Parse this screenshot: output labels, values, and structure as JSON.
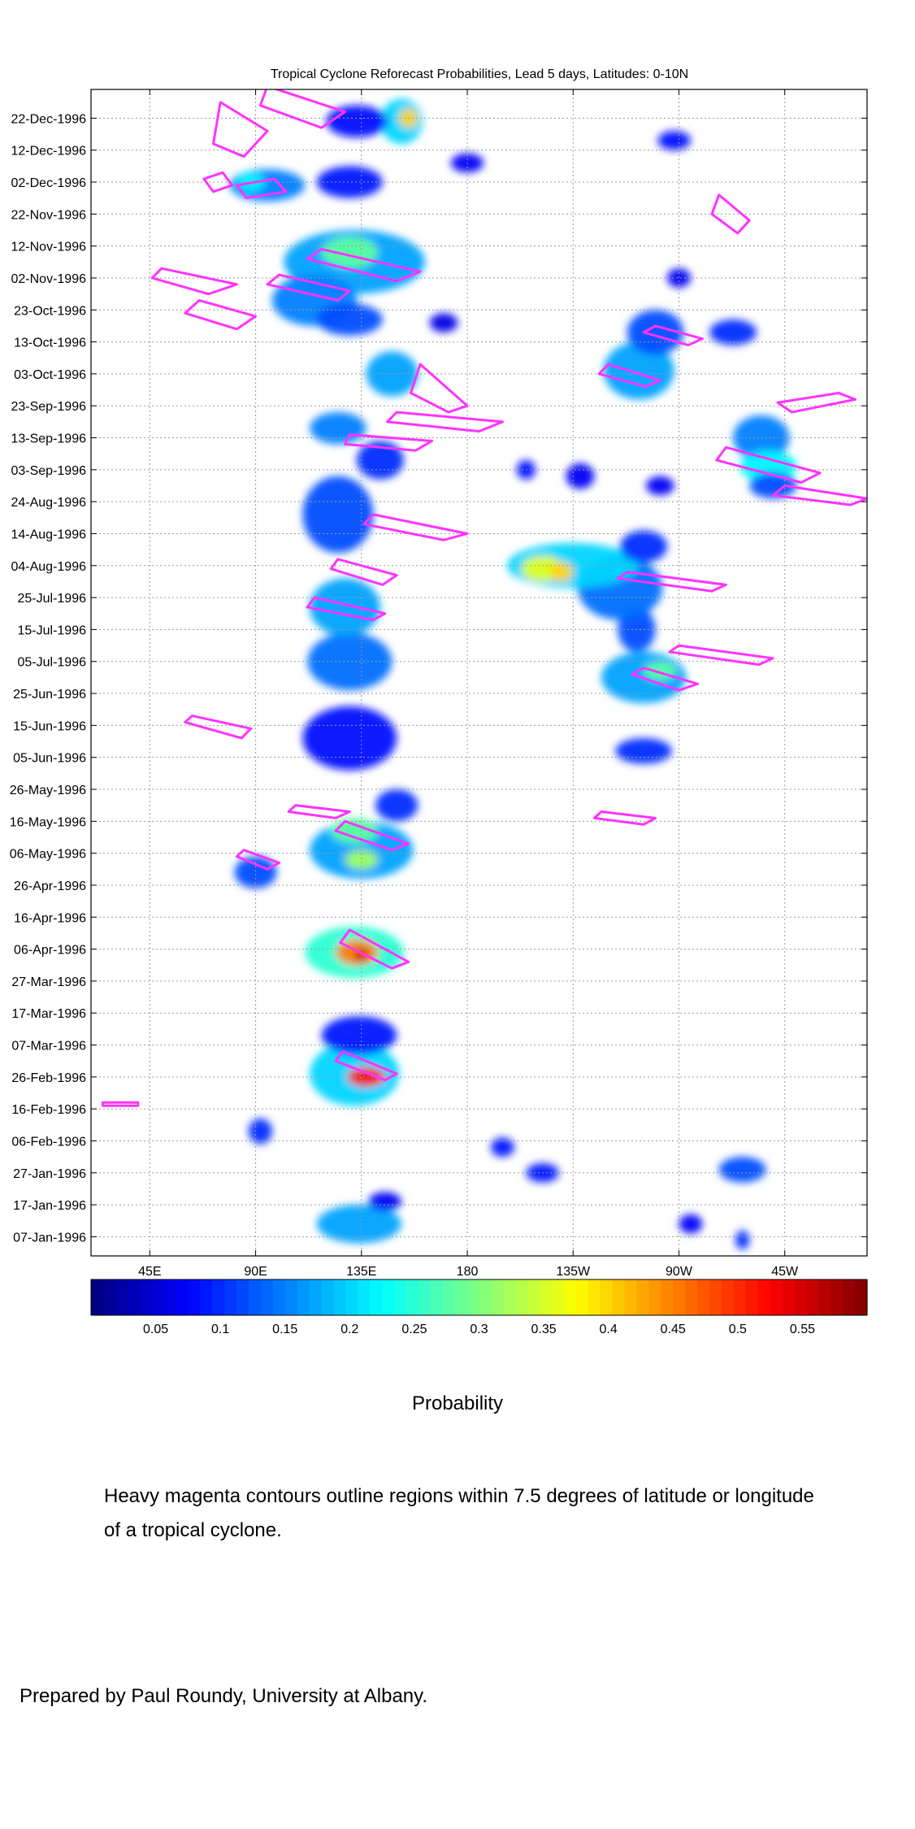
{
  "colors": {
    "contour": "#ff33ff",
    "grid": "#9a9a9a",
    "frame": "#000000"
  },
  "chart_data": {
    "type": "heatmap",
    "title": "Tropical Cyclone Reforecast Probabilities, Lead 5 days, Latitudes: 0-10N",
    "xlabel": "",
    "ylabel": "",
    "x_ticks": [
      "45E",
      "90E",
      "135E",
      "180",
      "135W",
      "90W",
      "45W"
    ],
    "x_tick_values": [
      45,
      90,
      135,
      180,
      225,
      270,
      315
    ],
    "xlim": [
      20,
      350
    ],
    "y_ticks": [
      "22-Dec-1996",
      "12-Dec-1996",
      "02-Dec-1996",
      "22-Nov-1996",
      "12-Nov-1996",
      "02-Nov-1996",
      "23-Oct-1996",
      "13-Oct-1996",
      "03-Oct-1996",
      "23-Sep-1996",
      "13-Sep-1996",
      "03-Sep-1996",
      "24-Aug-1996",
      "14-Aug-1996",
      "04-Aug-1996",
      "25-Jul-1996",
      "15-Jul-1996",
      "05-Jul-1996",
      "25-Jun-1996",
      "15-Jun-1996",
      "05-Jun-1996",
      "26-May-1996",
      "16-May-1996",
      "06-May-1996",
      "26-Apr-1996",
      "16-Apr-1996",
      "06-Apr-1996",
      "27-Mar-1996",
      "17-Mar-1996",
      "07-Mar-1996",
      "26-Feb-1996",
      "16-Feb-1996",
      "06-Feb-1996",
      "27-Jan-1996",
      "17-Jan-1996",
      "07-Jan-1996"
    ],
    "ylim": [
      "1996-01-01",
      "1996-12-31"
    ],
    "colorbar": {
      "label": "Probability",
      "range": [
        0,
        0.6
      ],
      "ticks": [
        "0.05",
        "0.1",
        "0.15",
        "0.2",
        "0.25",
        "0.3",
        "0.35",
        "0.4",
        "0.45",
        "0.5",
        "0.55"
      ],
      "tick_values": [
        0.05,
        0.1,
        0.15,
        0.2,
        0.25,
        0.3,
        0.35,
        0.4,
        0.45,
        0.5,
        0.55
      ]
    },
    "blobs": [
      {
        "lon": 134,
        "date": "1996-01-11",
        "dlon": 18,
        "ddays": 6,
        "p": 0.17
      },
      {
        "lon": 145,
        "date": "1996-01-18",
        "dlon": 7,
        "ddays": 3,
        "p": 0.07
      },
      {
        "lon": 92,
        "date": "1996-02-09",
        "dlon": 5,
        "ddays": 4,
        "p": 0.1
      },
      {
        "lon": 195,
        "date": "1996-02-04",
        "dlon": 5,
        "ddays": 3,
        "p": 0.09
      },
      {
        "lon": 212,
        "date": "1996-01-27",
        "dlon": 7,
        "ddays": 3,
        "p": 0.09
      },
      {
        "lon": 297,
        "date": "1996-01-28",
        "dlon": 10,
        "ddays": 4,
        "p": 0.12
      },
      {
        "lon": 275,
        "date": "1996-01-11",
        "dlon": 5,
        "ddays": 3,
        "p": 0.07
      },
      {
        "lon": 132,
        "date": "1996-02-27",
        "dlon": 19,
        "ddays": 10,
        "p": 0.2
      },
      {
        "lon": 137,
        "date": "1996-02-26",
        "dlon": 8,
        "ddays": 3,
        "p": 0.52
      },
      {
        "lon": 134,
        "date": "1996-03-10",
        "dlon": 16,
        "ddays": 6,
        "p": 0.09
      },
      {
        "lon": 132,
        "date": "1996-04-05",
        "dlon": 21,
        "ddays": 8,
        "p": 0.25
      },
      {
        "lon": 133,
        "date": "1996-04-05",
        "dlon": 9,
        "ddays": 4,
        "p": 0.45
      },
      {
        "lon": 135,
        "date": "1996-04-04",
        "dlon": 3,
        "ddays": 2,
        "p": 0.55
      },
      {
        "lon": 90,
        "date": "1996-04-30",
        "dlon": 9,
        "ddays": 5,
        "p": 0.12
      },
      {
        "lon": 135,
        "date": "1996-05-07",
        "dlon": 22,
        "ddays": 9,
        "p": 0.17
      },
      {
        "lon": 132,
        "date": "1996-05-13",
        "dlon": 10,
        "ddays": 4,
        "p": 0.28
      },
      {
        "lon": 135,
        "date": "1996-05-04",
        "dlon": 7,
        "ddays": 3,
        "p": 0.32
      },
      {
        "lon": 150,
        "date": "1996-05-21",
        "dlon": 9,
        "ddays": 5,
        "p": 0.1
      },
      {
        "lon": 255,
        "date": "1996-06-07",
        "dlon": 12,
        "ddays": 4,
        "p": 0.1
      },
      {
        "lon": 130,
        "date": "1996-06-11",
        "dlon": 20,
        "ddays": 10,
        "p": 0.08
      },
      {
        "lon": 130,
        "date": "1996-07-05",
        "dlon": 18,
        "ddays": 9,
        "p": 0.14
      },
      {
        "lon": 128,
        "date": "1996-07-22",
        "dlon": 15,
        "ddays": 9,
        "p": 0.17
      },
      {
        "lon": 255,
        "date": "1996-06-30",
        "dlon": 18,
        "ddays": 8,
        "p": 0.17
      },
      {
        "lon": 262,
        "date": "1996-07-02",
        "dlon": 7,
        "ddays": 3,
        "p": 0.28
      },
      {
        "lon": 252,
        "date": "1996-07-15",
        "dlon": 8,
        "ddays": 7,
        "p": 0.12
      },
      {
        "lon": 245,
        "date": "1996-07-28",
        "dlon": 18,
        "ddays": 10,
        "p": 0.14
      },
      {
        "lon": 225,
        "date": "1996-08-04",
        "dlon": 28,
        "ddays": 7,
        "p": 0.2
      },
      {
        "lon": 212,
        "date": "1996-08-03",
        "dlon": 9,
        "ddays": 4,
        "p": 0.36
      },
      {
        "lon": 220,
        "date": "1996-08-02",
        "dlon": 5,
        "ddays": 3,
        "p": 0.4
      },
      {
        "lon": 255,
        "date": "1996-08-10",
        "dlon": 10,
        "ddays": 5,
        "p": 0.1
      },
      {
        "lon": 125,
        "date": "1996-08-20",
        "dlon": 15,
        "ddays": 12,
        "p": 0.12
      },
      {
        "lon": 143,
        "date": "1996-09-06",
        "dlon": 10,
        "ddays": 6,
        "p": 0.1
      },
      {
        "lon": 125,
        "date": "1996-09-16",
        "dlon": 12,
        "ddays": 5,
        "p": 0.15
      },
      {
        "lon": 148,
        "date": "1996-10-03",
        "dlon": 11,
        "ddays": 7,
        "p": 0.17
      },
      {
        "lon": 253,
        "date": "1996-10-04",
        "dlon": 15,
        "ddays": 9,
        "p": 0.17
      },
      {
        "lon": 260,
        "date": "1996-10-16",
        "dlon": 12,
        "ddays": 7,
        "p": 0.12
      },
      {
        "lon": 293,
        "date": "1996-10-16",
        "dlon": 10,
        "ddays": 4,
        "p": 0.1
      },
      {
        "lon": 305,
        "date": "1996-09-13",
        "dlon": 12,
        "ddays": 7,
        "p": 0.15
      },
      {
        "lon": 308,
        "date": "1996-09-04",
        "dlon": 12,
        "ddays": 5,
        "p": 0.22
      },
      {
        "lon": 310,
        "date": "1996-08-29",
        "dlon": 10,
        "ddays": 4,
        "p": 0.12
      },
      {
        "lon": 262,
        "date": "1996-08-29",
        "dlon": 6,
        "ddays": 3,
        "p": 0.07
      },
      {
        "lon": 228,
        "date": "1996-09-01",
        "dlon": 6,
        "ddays": 4,
        "p": 0.07
      },
      {
        "lon": 270,
        "date": "1996-11-02",
        "dlon": 5,
        "ddays": 3,
        "p": 0.07
      },
      {
        "lon": 132,
        "date": "1996-11-07",
        "dlon": 30,
        "ddays": 10,
        "p": 0.17
      },
      {
        "lon": 130,
        "date": "1996-11-10",
        "dlon": 12,
        "ddays": 5,
        "p": 0.28
      },
      {
        "lon": 115,
        "date": "1996-10-26",
        "dlon": 18,
        "ddays": 8,
        "p": 0.15
      },
      {
        "lon": 130,
        "date": "1996-10-20",
        "dlon": 14,
        "ddays": 5,
        "p": 0.12
      },
      {
        "lon": 95,
        "date": "1996-12-01",
        "dlon": 16,
        "ddays": 5,
        "p": 0.15
      },
      {
        "lon": 88,
        "date": "1996-12-02",
        "dlon": 6,
        "ddays": 3,
        "p": 0.22
      },
      {
        "lon": 130,
        "date": "1996-12-02",
        "dlon": 14,
        "ddays": 5,
        "p": 0.09
      },
      {
        "lon": 152,
        "date": "1996-12-21",
        "dlon": 9,
        "ddays": 7,
        "p": 0.2
      },
      {
        "lon": 155,
        "date": "1996-12-22",
        "dlon": 4,
        "ddays": 3,
        "p": 0.4
      },
      {
        "lon": 133,
        "date": "1996-12-21",
        "dlon": 13,
        "ddays": 5,
        "p": 0.08
      },
      {
        "lon": 180,
        "date": "1996-12-08",
        "dlon": 7,
        "ddays": 3,
        "p": 0.07
      },
      {
        "lon": 268,
        "date": "1996-12-15",
        "dlon": 7,
        "ddays": 3,
        "p": 0.08
      },
      {
        "lon": 297,
        "date": "1996-01-06",
        "dlon": 3,
        "ddays": 3,
        "p": 0.1
      },
      {
        "lon": 170,
        "date": "1996-10-19",
        "dlon": 6,
        "ddays": 3,
        "p": 0.06
      },
      {
        "lon": 205,
        "date": "1996-09-03",
        "dlon": 4,
        "ddays": 3,
        "p": 0.08
      }
    ],
    "contours": [
      {
        "points": [
          [
            68,
            "1996-12-03"
          ],
          [
            76,
            "1996-12-05"
          ],
          [
            80,
            "1996-12-01"
          ],
          [
            72,
            "1996-11-29"
          ]
        ]
      },
      {
        "points": [
          [
            82,
            "1996-12-01"
          ],
          [
            98,
            "1996-12-03"
          ],
          [
            103,
            "1996-11-29"
          ],
          [
            86,
            "1996-11-27"
          ]
        ]
      },
      {
        "points": [
          [
            50,
            "1996-11-05"
          ],
          [
            82,
            "1996-10-31"
          ],
          [
            70,
            "1996-10-28"
          ],
          [
            46,
            "1996-11-02"
          ]
        ]
      },
      {
        "points": [
          [
            66,
            "1996-10-26"
          ],
          [
            90,
            "1996-10-21"
          ],
          [
            82,
            "1996-10-17"
          ],
          [
            60,
            "1996-10-22"
          ]
        ]
      },
      {
        "points": [
          [
            100,
            "1996-11-03"
          ],
          [
            130,
            "1996-10-29"
          ],
          [
            125,
            "1996-10-26"
          ],
          [
            95,
            "1996-10-31"
          ]
        ]
      },
      {
        "points": [
          [
            118,
            "1996-11-11"
          ],
          [
            160,
            "1996-11-04"
          ],
          [
            150,
            "1996-11-01"
          ],
          [
            112,
            "1996-11-08"
          ]
        ]
      },
      {
        "points": [
          [
            160,
            "1996-10-06"
          ],
          [
            180,
            "1996-09-23"
          ],
          [
            172,
            "1996-09-21"
          ],
          [
            156,
            "1996-09-27"
          ]
        ]
      },
      {
        "points": [
          [
            150,
            "1996-09-21"
          ],
          [
            195,
            "1996-09-18"
          ],
          [
            185,
            "1996-09-15"
          ],
          [
            146,
            "1996-09-18"
          ]
        ]
      },
      {
        "points": [
          [
            130,
            "1996-09-14"
          ],
          [
            165,
            "1996-09-12"
          ],
          [
            158,
            "1996-09-09"
          ],
          [
            128,
            "1996-09-11"
          ]
        ]
      },
      {
        "points": [
          [
            140,
            "1996-08-20"
          ],
          [
            180,
            "1996-08-14"
          ],
          [
            170,
            "1996-08-12"
          ],
          [
            136,
            "1996-08-17"
          ]
        ]
      },
      {
        "points": [
          [
            125,
            "1996-08-06"
          ],
          [
            150,
            "1996-08-01"
          ],
          [
            144,
            "1996-07-29"
          ],
          [
            122,
            "1996-08-03"
          ]
        ]
      },
      {
        "points": [
          [
            115,
            "1996-07-25"
          ],
          [
            145,
            "1996-07-20"
          ],
          [
            140,
            "1996-07-18"
          ],
          [
            112,
            "1996-07-22"
          ]
        ]
      },
      {
        "points": [
          [
            240,
            "1996-10-06"
          ],
          [
            262,
            "1996-10-01"
          ],
          [
            256,
            "1996-09-29"
          ],
          [
            236,
            "1996-10-03"
          ]
        ]
      },
      {
        "points": [
          [
            260,
            "1996-10-18"
          ],
          [
            280,
            "1996-10-14"
          ],
          [
            274,
            "1996-10-12"
          ],
          [
            255,
            "1996-10-16"
          ]
        ]
      },
      {
        "points": [
          [
            248,
            "1996-08-02"
          ],
          [
            290,
            "1996-07-29"
          ],
          [
            284,
            "1996-07-27"
          ],
          [
            244,
            "1996-07-31"
          ]
        ]
      },
      {
        "points": [
          [
            270,
            "1996-07-10"
          ],
          [
            310,
            "1996-07-06"
          ],
          [
            304,
            "1996-07-04"
          ],
          [
            266,
            "1996-07-08"
          ]
        ]
      },
      {
        "points": [
          [
            255,
            "1996-07-03"
          ],
          [
            278,
            "1996-06-28"
          ],
          [
            270,
            "1996-06-26"
          ],
          [
            250,
            "1996-07-01"
          ]
        ]
      },
      {
        "points": [
          [
            287,
            "1996-11-28"
          ],
          [
            300,
            "1996-11-20"
          ],
          [
            295,
            "1996-11-16"
          ],
          [
            284,
            "1996-11-22"
          ]
        ]
      },
      {
        "points": [
          [
            290,
            "1996-09-10"
          ],
          [
            330,
            "1996-09-02"
          ],
          [
            322,
            "1996-08-30"
          ],
          [
            286,
            "1996-09-06"
          ]
        ]
      },
      {
        "points": [
          [
            318,
            "1996-09-21"
          ],
          [
            345,
            "1996-09-25"
          ],
          [
            338,
            "1996-09-27"
          ],
          [
            312,
            "1996-09-24"
          ]
        ]
      },
      {
        "points": [
          [
            315,
            "1996-08-29"
          ],
          [
            350,
            "1996-08-25"
          ],
          [
            343,
            "1996-08-23"
          ],
          [
            310,
            "1996-08-26"
          ]
        ]
      },
      {
        "points": [
          [
            130,
            "1996-04-12"
          ],
          [
            155,
            "1996-04-02"
          ],
          [
            148,
            "1996-03-31"
          ],
          [
            126,
            "1996-04-08"
          ]
        ]
      },
      {
        "points": [
          [
            127,
            "1996-03-05"
          ],
          [
            150,
            "1996-02-27"
          ],
          [
            145,
            "1996-02-25"
          ],
          [
            124,
            "1996-03-02"
          ]
        ]
      },
      {
        "points": [
          [
            128,
            "1996-05-16"
          ],
          [
            155,
            "1996-05-09"
          ],
          [
            148,
            "1996-05-07"
          ],
          [
            124,
            "1996-05-13"
          ]
        ]
      },
      {
        "points": [
          [
            107,
            "1996-05-21"
          ],
          [
            130,
            "1996-05-19"
          ],
          [
            124,
            "1996-05-17"
          ],
          [
            104,
            "1996-05-19"
          ]
        ]
      },
      {
        "points": [
          [
            85,
            "1996-05-07"
          ],
          [
            100,
            "1996-05-03"
          ],
          [
            95,
            "1996-05-01"
          ],
          [
            82,
            "1996-05-05"
          ]
        ]
      },
      {
        "points": [
          [
            63,
            "1996-06-18"
          ],
          [
            88,
            "1996-06-14"
          ],
          [
            84,
            "1996-06-11"
          ],
          [
            60,
            "1996-06-16"
          ]
        ]
      },
      {
        "points": [
          [
            237,
            "1996-05-19"
          ],
          [
            260,
            "1996-05-17"
          ],
          [
            255,
            "1996-05-15"
          ],
          [
            234,
            "1996-05-17"
          ]
        ]
      },
      {
        "points": [
          [
            25,
            "1996-02-18"
          ],
          [
            40,
            "1996-02-18"
          ],
          [
            40,
            "1996-02-17"
          ],
          [
            25,
            "1996-02-17"
          ]
        ]
      },
      {
        "points": [
          [
            75,
            "1996-12-27"
          ],
          [
            95,
            "1996-12-18"
          ],
          [
            85,
            "1996-12-10"
          ],
          [
            72,
            "1996-12-14"
          ]
        ]
      },
      {
        "points": [
          [
            95,
            "1997-01-01"
          ],
          [
            128,
            "1996-12-24"
          ],
          [
            118,
            "1996-12-19"
          ],
          [
            92,
            "1996-12-26"
          ]
        ]
      }
    ]
  },
  "probability_label": "Probability",
  "note": "Heavy magenta contours outline regions within 7.5 degrees of latitude or longitude of a tropical cyclone.",
  "credit": "Prepared by Paul Roundy, University at Albany."
}
